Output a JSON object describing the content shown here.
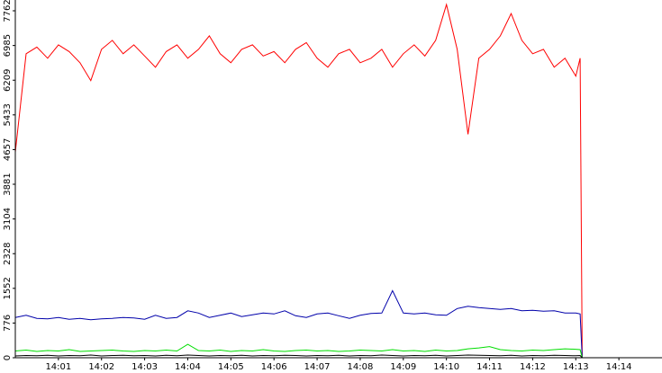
{
  "chart_data": {
    "type": "line",
    "x": [
      0,
      0.25,
      0.5,
      0.75,
      1,
      1.25,
      1.5,
      1.75,
      2,
      2.25,
      2.5,
      2.75,
      3,
      3.25,
      3.5,
      3.75,
      4,
      4.25,
      4.5,
      4.75,
      5,
      5.25,
      5.5,
      5.75,
      6,
      6.25,
      6.5,
      6.75,
      7,
      7.25,
      7.5,
      7.75,
      8,
      8.25,
      8.5,
      8.75,
      9,
      9.25,
      9.5,
      9.75,
      10,
      10.25,
      10.5,
      10.75,
      11,
      11.25,
      11.5,
      11.75,
      12,
      12.25,
      12.5,
      12.75,
      13,
      13.1,
      13.15
    ],
    "series": [
      {
        "color": "#ff0000",
        "values": [
          4600,
          6800,
          6950,
          6700,
          7000,
          6850,
          6600,
          6200,
          6900,
          7100,
          6800,
          7000,
          6750,
          6500,
          6850,
          7000,
          6700,
          6900,
          7200,
          6800,
          6600,
          6900,
          7000,
          6750,
          6850,
          6600,
          6900,
          7050,
          6700,
          6500,
          6800,
          6900,
          6600,
          6700,
          6900,
          6500,
          6800,
          7000,
          6750,
          7100,
          7900,
          6900,
          5000,
          6700,
          6900,
          7200,
          7700,
          7100,
          6800,
          6900,
          6500,
          6700,
          6300,
          6700,
          0
        ]
      },
      {
        "color": "#0000aa",
        "values": [
          900,
          950,
          880,
          870,
          900,
          860,
          880,
          850,
          870,
          880,
          900,
          890,
          860,
          950,
          880,
          900,
          1050,
          1000,
          900,
          950,
          1000,
          920,
          960,
          1000,
          980,
          1050,
          940,
          900,
          980,
          1000,
          940,
          880,
          950,
          990,
          1000,
          1500,
          1000,
          980,
          1000,
          960,
          950,
          1100,
          1150,
          1120,
          1100,
          1080,
          1100,
          1050,
          1060,
          1040,
          1050,
          1000,
          1000,
          980,
          0
        ]
      },
      {
        "color": "#00dd00",
        "values": [
          150,
          170,
          140,
          160,
          150,
          180,
          140,
          150,
          160,
          170,
          150,
          140,
          160,
          150,
          170,
          150,
          300,
          160,
          150,
          170,
          140,
          160,
          150,
          180,
          150,
          140,
          160,
          170,
          150,
          160,
          140,
          150,
          170,
          160,
          150,
          180,
          150,
          160,
          140,
          170,
          150,
          160,
          200,
          220,
          250,
          180,
          160,
          150,
          170,
          160,
          180,
          200,
          190,
          180,
          0
        ]
      },
      {
        "color": "#000000",
        "values": [
          40,
          50,
          45,
          55,
          40,
          50,
          45,
          60,
          40,
          50,
          55,
          45,
          50,
          40,
          55,
          45,
          60,
          50,
          40,
          50,
          45,
          55,
          40,
          50,
          45,
          55,
          50,
          40,
          50,
          45,
          55,
          40,
          50,
          45,
          60,
          50,
          40,
          50,
          45,
          55,
          40,
          50,
          60,
          55,
          50,
          45,
          55,
          40,
          50,
          45,
          55,
          50,
          45,
          50,
          0
        ]
      }
    ],
    "xlim": [
      0,
      15
    ],
    "xticks": [
      {
        "value": 1,
        "label": "14:01"
      },
      {
        "value": 2,
        "label": "14:02"
      },
      {
        "value": 3,
        "label": "14:03"
      },
      {
        "value": 4,
        "label": "14:04"
      },
      {
        "value": 5,
        "label": "14:05"
      },
      {
        "value": 6,
        "label": "14:06"
      },
      {
        "value": 7,
        "label": "14:07"
      },
      {
        "value": 8,
        "label": "14:08"
      },
      {
        "value": 9,
        "label": "14:09"
      },
      {
        "value": 10,
        "label": "14:10"
      },
      {
        "value": 11,
        "label": "14:11"
      },
      {
        "value": 12,
        "label": "14:12"
      },
      {
        "value": 13,
        "label": "14:13"
      },
      {
        "value": 14,
        "label": "14:14"
      }
    ],
    "ylim": [
      0,
      7762
    ],
    "yticks": [
      0,
      776,
      1552,
      2328,
      3104,
      3881,
      4657,
      5433,
      6209,
      6985,
      7762
    ]
  }
}
